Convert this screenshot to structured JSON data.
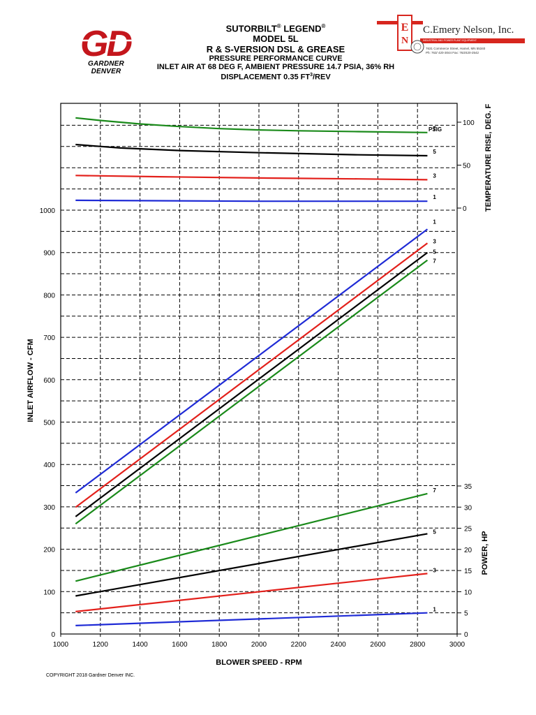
{
  "header": {
    "logo_letters": "GD",
    "logo_subtitle": "GARDNER DENVER",
    "title_line1": "SUTORBILT",
    "title_line1b": "LEGEND",
    "reg_mark": "®",
    "title_line2": "MODEL 5L",
    "title_line3": "R & S-VERSION DSL & GREASE",
    "subtitle_line1": "PRESSURE PERFORMANCE CURVE",
    "subtitle_line2": "INLET AIR AT 68 DEG F, AMBIENT PRESSURE 14.7 PSIA, 36% RH",
    "subtitle_line3a": "DISPLACEMENT 0.35 FT",
    "subtitle_line3_sup": "3",
    "subtitle_line3b": "/REV"
  },
  "dealer": {
    "name": "C.Emery Nelson, Inc.",
    "tagline": "INDUSTRIAL AND POWER PLANT EQUIPMENT",
    "address": "7631 Commerce Street, Hamel, MN  55340",
    "phone": "Ph: 763/ 420-3044     Fax: 763/420-2542",
    "color": "#d7261e"
  },
  "colors": {
    "psig_1": "#1f2bd6",
    "psig_3": "#e3201b",
    "psig_5": "#000000",
    "psig_7": "#1a8a1a",
    "brand_red": "#c4161c"
  },
  "chart_data": {
    "type": "line",
    "xlabel": "BLOWER SPEED - RPM",
    "xlim": [
      1000,
      3000
    ],
    "x_ticks": [
      "1000",
      "1200",
      "1400",
      "1600",
      "1800",
      "2000",
      "2200",
      "2400",
      "2600",
      "2800",
      "3000"
    ],
    "grid": true,
    "legend_title": "PSIG",
    "airflow": {
      "ylabel": "INLET AIRFLOW - CFM",
      "ylim": [
        0,
        1000
      ],
      "y_ticks": [
        "0",
        "100",
        "200",
        "300",
        "400",
        "500",
        "600",
        "700",
        "800",
        "900",
        "1000"
      ],
      "series": [
        {
          "name": "1",
          "color": "#1f2bd6",
          "x": [
            1075,
            2850
          ],
          "y": [
            333,
            955
          ]
        },
        {
          "name": "3",
          "color": "#e3201b",
          "x": [
            1075,
            2850
          ],
          "y": [
            299,
            922
          ]
        },
        {
          "name": "5",
          "color": "#000000",
          "x": [
            1075,
            2850
          ],
          "y": [
            277,
            900
          ]
        },
        {
          "name": "7",
          "color": "#1a8a1a",
          "x": [
            1075,
            2850
          ],
          "y": [
            260,
            882
          ]
        }
      ]
    },
    "temperature_rise": {
      "ylabel": "TEMPERATURE RISE, DEG. F",
      "ylim": [
        0,
        100
      ],
      "y_ticks": [
        "0",
        "50",
        "100"
      ],
      "series": [
        {
          "name": "1",
          "color": "#1f2bd6",
          "x": [
            1075,
            1500,
            2000,
            2500,
            2850
          ],
          "y": [
            9,
            8.5,
            8,
            8,
            8
          ]
        },
        {
          "name": "3",
          "color": "#e3201b",
          "x": [
            1075,
            1500,
            2000,
            2500,
            2850
          ],
          "y": [
            38,
            36.5,
            35,
            34,
            33
          ]
        },
        {
          "name": "5",
          "color": "#000000",
          "x": [
            1075,
            1300,
            1600,
            2000,
            2500,
            2850
          ],
          "y": [
            74,
            70,
            67,
            64.5,
            62,
            61
          ]
        },
        {
          "name": "7",
          "color": "#1a8a1a",
          "x": [
            1075,
            1200,
            1400,
            1600,
            1800,
            2000,
            2200,
            2500,
            2850
          ],
          "y": [
            105,
            102,
            98,
            95,
            92.5,
            91,
            90,
            89,
            88
          ]
        }
      ]
    },
    "power": {
      "ylabel": "POWER, HP",
      "ylim": [
        0,
        35
      ],
      "y_ticks": [
        "0",
        "5",
        "10",
        "15",
        "20",
        "25",
        "30",
        "35"
      ],
      "series": [
        {
          "name": "1",
          "color": "#1f2bd6",
          "x": [
            1075,
            2850
          ],
          "y": [
            2,
            5
          ]
        },
        {
          "name": "3",
          "color": "#e3201b",
          "x": [
            1075,
            2850
          ],
          "y": [
            5.3,
            14.3
          ]
        },
        {
          "name": "5",
          "color": "#000000",
          "x": [
            1075,
            2850
          ],
          "y": [
            9,
            23.7
          ]
        },
        {
          "name": "7",
          "color": "#1a8a1a",
          "x": [
            1075,
            2850
          ],
          "y": [
            12.5,
            33.2
          ]
        }
      ]
    }
  },
  "footer": {
    "copyright": "COPYRIGHT 2018 Gardner Denver INC."
  }
}
